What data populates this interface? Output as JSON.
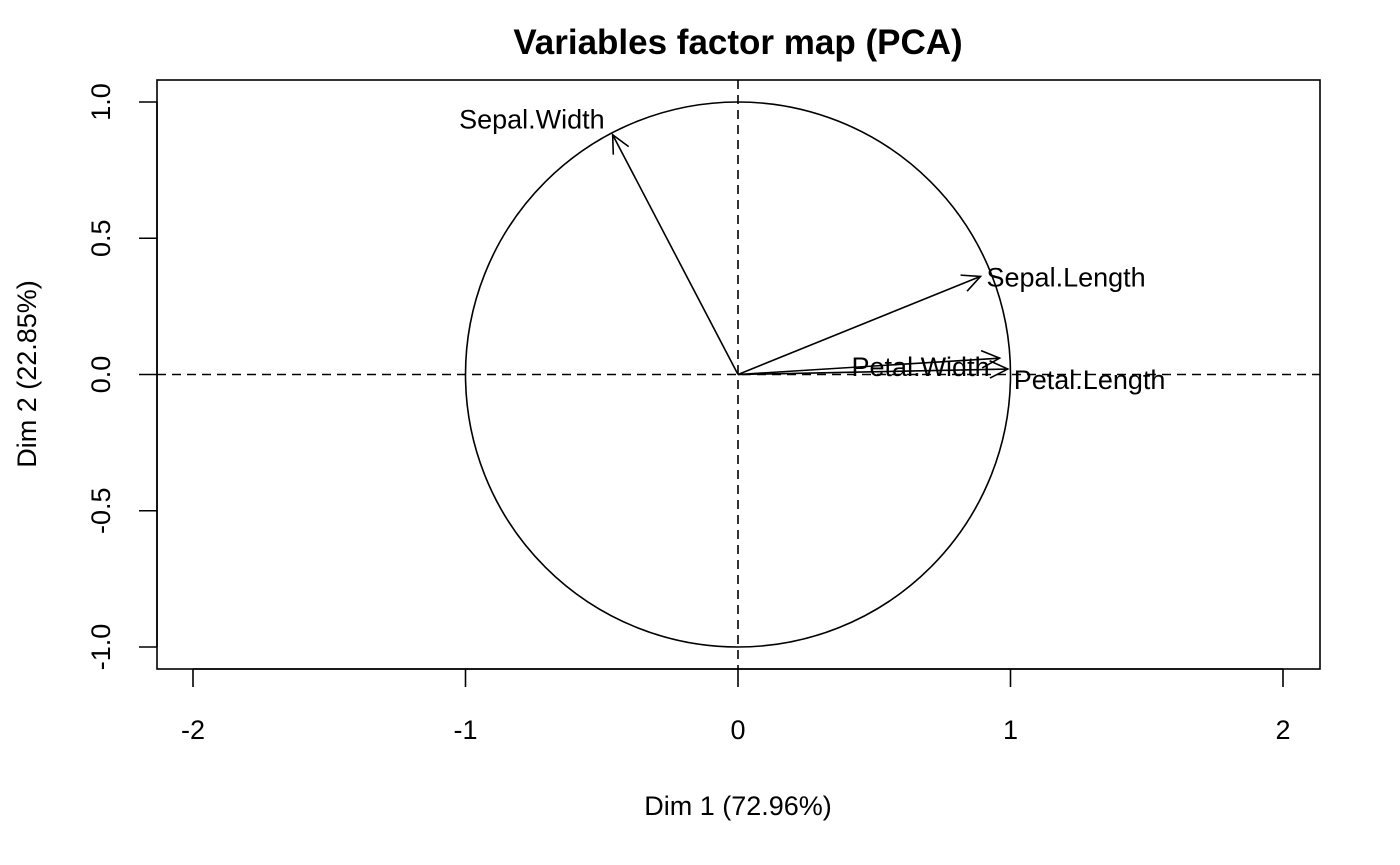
{
  "chart_data": {
    "type": "scatter",
    "title": "Variables factor map (PCA)",
    "xlabel": "Dim 1 (72.96%)",
    "ylabel": "Dim 2 (22.85%)",
    "xlim": [
      -2.1,
      2.1
    ],
    "ylim": [
      -1.08,
      1.08
    ],
    "x_ticks": [
      -2,
      -1,
      0,
      1,
      2
    ],
    "x_tick_labels": [
      "-2",
      "-1",
      "0",
      "1",
      "2"
    ],
    "y_ticks": [
      -1.0,
      -0.5,
      0.0,
      0.5,
      1.0
    ],
    "y_tick_labels": [
      "-1.0",
      "-0.5",
      "0.0",
      "0.5",
      "1.0"
    ],
    "grid": false,
    "reference_lines": {
      "x": 0,
      "y": 0,
      "style": "dashed"
    },
    "unit_circle": true,
    "variables": [
      {
        "name": "Sepal.Length",
        "x": 0.89,
        "y": 0.36
      },
      {
        "name": "Sepal.Width",
        "x": -0.46,
        "y": 0.88
      },
      {
        "name": "Petal.Length",
        "x": 0.99,
        "y": 0.02
      },
      {
        "name": "Petal.Width",
        "x": 0.96,
        "y": 0.06
      }
    ]
  }
}
